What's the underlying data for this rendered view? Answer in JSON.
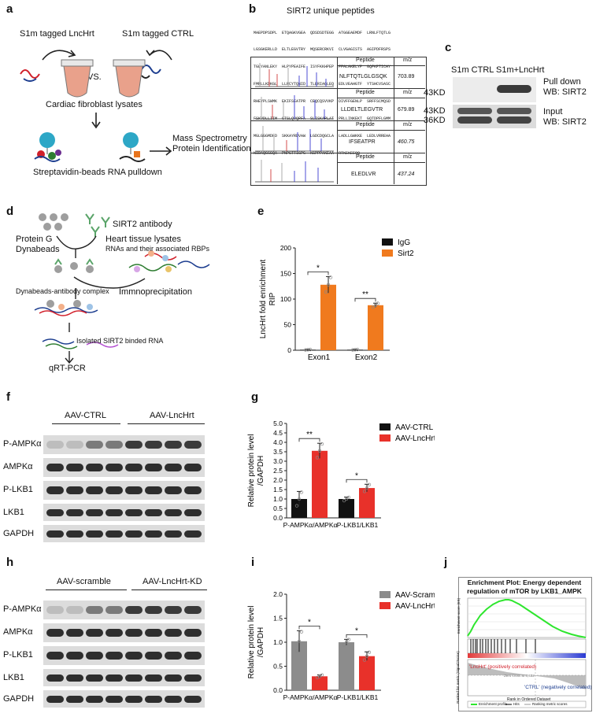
{
  "panels": {
    "a": {
      "letter": "a",
      "left_label": "S1m tagged LncHrt",
      "right_label": "S1m tagged CTRL",
      "vs": "VS.",
      "lysate": "Cardiac fibroblast lysates",
      "ms1": "Mass Spectrometry",
      "ms2": "Protein Identification",
      "pulldown": "Streptavidin-beads RNA pulldown"
    },
    "b": {
      "letter": "b",
      "title": "SIRT2 unique peptides",
      "seq_rows": [
        "MAEPDPSDPL  ETQAGKVGEA  QDSDSDTEGG  ATGGEAEMDF  LRNLFTQTLG",
        "LGSGKERLLD  ELTLEGVTRY  MQSERCRKVI  CLVGAGISTS  AGIPDFRSPS",
        "TGLYANLEKY  HLPYPEAIFE  ISYFKKHPEP  FFALAKELYP  GQFKPTICHY",
        "FMRLLKDKGL  LLRCYTQNID  TLERIAGLEQ  EDLVEAHGTF  YTSHCVSASC",
        "RHEYPLSWMK  EKIFSEATPR  CEQCQSVVKP  DIVFFGENLP  SRFFSCMQSD",
        "FSKVDLLIIM  GTSLQVQPFA  SLISKAPLAT  PRLLINKEKT  GQTDPFLGMM",
        "MGLGGGMDFD  SKKAYRDVAW  LGDCDQGCLA  LADLLGWKKE  LEDLVRREHA",
        "NIDAQSGSQA  PNPSTTISPG  KSPPPAKEAA  RTKEKEEQQ"
      ],
      "table": [
        {
          "h1": "Peptide",
          "h2": "m/z",
          "peptide": "NLFTQTLGLGSQK",
          "mz": "703.89"
        },
        {
          "h1": "Peptide",
          "h2": "m/z",
          "peptide": "LLDELTLEGVTR",
          "mz": "679.89"
        },
        {
          "h1": "Peptide",
          "h2": "m/z",
          "peptide": "IFSEATPR",
          "mz": "460.75"
        },
        {
          "h1": "Peptide",
          "h2": "m/z",
          "peptide": "ELEDLVR",
          "mz": "437.24"
        }
      ]
    },
    "c": {
      "letter": "c",
      "col1": "S1m CTRL",
      "col2": "S1m+LncHrt",
      "kd1": "43KD",
      "kd2": "43KD",
      "kd3": "36KD",
      "r1a": "Pull down",
      "r1b": "WB: SIRT2",
      "r2a": "Input",
      "r2b": "WB: SIRT2"
    },
    "d": {
      "letter": "d",
      "protein_g": "Protein G",
      "dynabeads": "Dynabeads",
      "antibody": "SIRT2 antibody",
      "heart": "Heart tissue lysates",
      "rnas": "RNAs and their associated RBPs",
      "complex": "Dynabeads-antibody complex",
      "ip": "Immnoprecipitation",
      "isolated": "Isolated SIRT2 binded RNA",
      "qrt": "qRT-PCR"
    },
    "f": {
      "letter": "f",
      "group1": "AAV-CTRL",
      "group2": "AAV-LncHrt",
      "rows": [
        "P-AMPKα",
        "AMPKα",
        "P-LKB1",
        "LKB1",
        "GAPDH"
      ]
    },
    "h": {
      "letter": "h",
      "group1": "AAV-scramble",
      "group2": "AAV-LncHrt-KD",
      "rows": [
        "P-AMPKα",
        "AMPKα",
        "P-LKB1",
        "LKB1",
        "GAPDH"
      ]
    },
    "j": {
      "letter": "j",
      "title1": "Enrichment Plot: Energy dependent",
      "title2": "regulation of mTOR by LKB1_AMPK",
      "pos": "'LncHrt' (positively correlated)",
      "neg": "'CTRL' (negatively correlated)",
      "xlabel": "Rank in Ordered Dataset",
      "y1": "Enrichment score (ES)",
      "y2": "Ranked list metric (Signal2Noise)",
      "leg1": "Enrichment profile",
      "leg2": "Hits",
      "leg3": "Ranking metric scores",
      "zero": "Zero cross at 8,432"
    }
  },
  "chart_data": [
    {
      "id": "e",
      "letter": "e",
      "type": "bar",
      "categories": [
        "Exon1",
        "Exon2"
      ],
      "series": [
        {
          "name": "IgG",
          "values": [
            1,
            1
          ],
          "errors": [
            0.5,
            0.5
          ],
          "color": "#111111"
        },
        {
          "name": "Sirt2",
          "values": [
            128,
            88
          ],
          "errors": [
            16,
            4
          ],
          "color": "#f07a1e"
        }
      ],
      "ylabel": "LncHrt fold enrichment RIP",
      "ylabel_lines": [
        "LncHrt fold enrichment",
        "RIP"
      ],
      "ylim": [
        0,
        200
      ],
      "yticks": [
        0,
        50,
        100,
        150,
        200
      ],
      "significance": [
        "*",
        "**"
      ],
      "legend": "top-right"
    },
    {
      "id": "g",
      "letter": "g",
      "type": "bar",
      "categories": [
        "P-AMPKα/AMPKα",
        "P-LKB1/LKB1"
      ],
      "series": [
        {
          "name": "AAV-CTRL",
          "values": [
            1.0,
            1.0
          ],
          "errors": [
            0.4,
            0.1
          ],
          "color": "#111111"
        },
        {
          "name": "AAV-LncHrt",
          "values": [
            3.55,
            1.58
          ],
          "errors": [
            0.4,
            0.2
          ],
          "color": "#e8312a"
        }
      ],
      "ylabel": "Relative protein level /GAPDH",
      "ylabel_lines": [
        "Relative protein level",
        "/GAPDH"
      ],
      "ylim": [
        0,
        5.0
      ],
      "yticks": [
        "0.0",
        "0.5",
        "1.0",
        "1.5",
        "2.0",
        "2.5",
        "3.0",
        "3.5",
        "4.0",
        "4.5",
        "5.0"
      ],
      "significance": [
        "**",
        "*"
      ],
      "legend": "top-right"
    },
    {
      "id": "i",
      "letter": "i",
      "type": "bar",
      "categories": [
        "P-AMPKα/AMPKα",
        "P-LKB1/LKB1"
      ],
      "series": [
        {
          "name": "AAV-Scramble",
          "values": [
            1.02,
            1.0
          ],
          "errors": [
            0.22,
            0.06
          ],
          "color": "#8c8c8c"
        },
        {
          "name": "AAV-LncHrt KD",
          "values": [
            0.29,
            0.71
          ],
          "errors": [
            0.03,
            0.09
          ],
          "color": "#e8312a"
        }
      ],
      "ylabel": "Relative protein level /GAPDH",
      "ylabel_lines": [
        "Relative protein level",
        "/GAPDH"
      ],
      "ylim": [
        0,
        2.0
      ],
      "yticks": [
        "0.0",
        "0.5",
        "1.0",
        "1.5",
        "2.0"
      ],
      "significance": [
        "*",
        "*"
      ],
      "legend": "top-right"
    }
  ]
}
